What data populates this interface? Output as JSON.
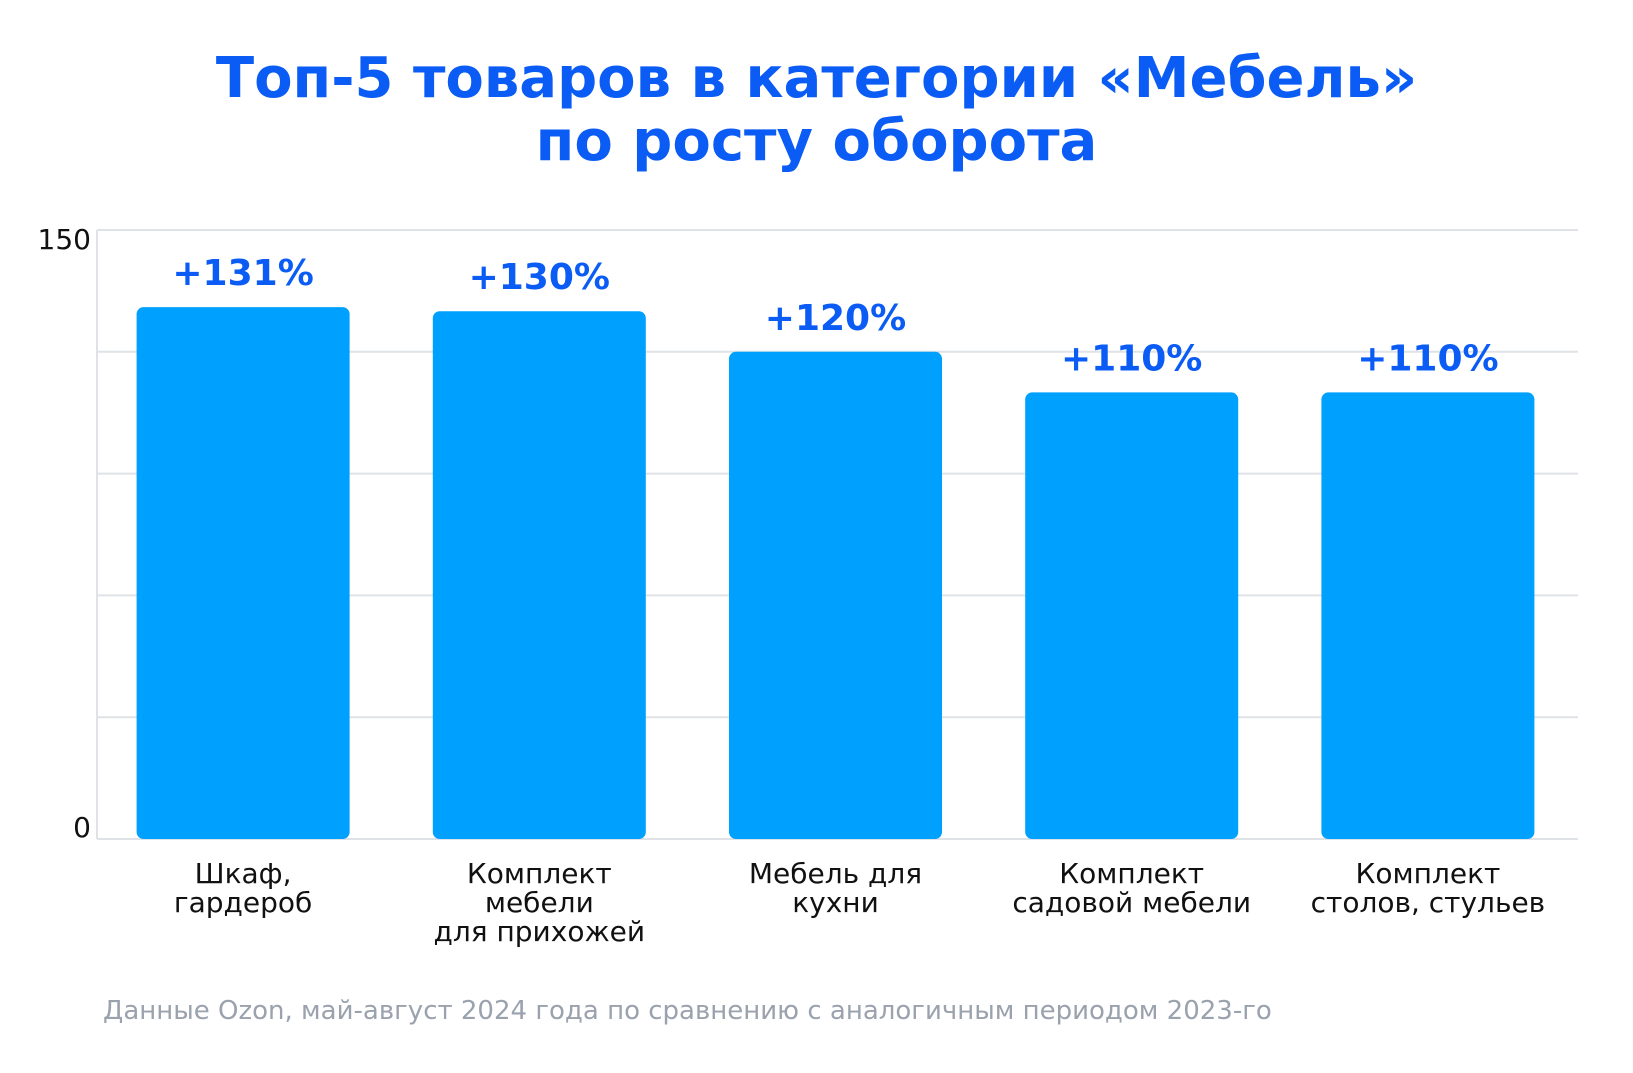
{
  "title_lines": [
    "Топ-5 товаров в категории «Мебель»",
    "по росту оборота"
  ],
  "source_note": "Данные Ozon, май-август 2024 года по сравнению с аналогичным периодом 2023-го",
  "colors": {
    "title": "#0b5cf5",
    "bar": "#00a0ff",
    "label": "#0b5cf5",
    "grid": "#dfe2e6",
    "text": "#111111",
    "note": "#9aa2ad"
  },
  "chart_data": {
    "type": "bar",
    "categories": [
      [
        "Шкаф,",
        "гардероб"
      ],
      [
        "Комплект",
        "мебели",
        "для прихожей"
      ],
      [
        "Мебель для",
        "кухни"
      ],
      [
        "Комплект",
        "садовой мебели"
      ],
      [
        "Комплект",
        "столов, стульев"
      ]
    ],
    "values": [
      131,
      130,
      120,
      110,
      110
    ],
    "data_labels": [
      "+131%",
      "+130%",
      "+120%",
      "+110%",
      "+110%"
    ],
    "ylim": [
      0,
      150
    ],
    "y_ticks_labeled": [
      0,
      150
    ],
    "grid": true,
    "grid_lines": 5
  }
}
